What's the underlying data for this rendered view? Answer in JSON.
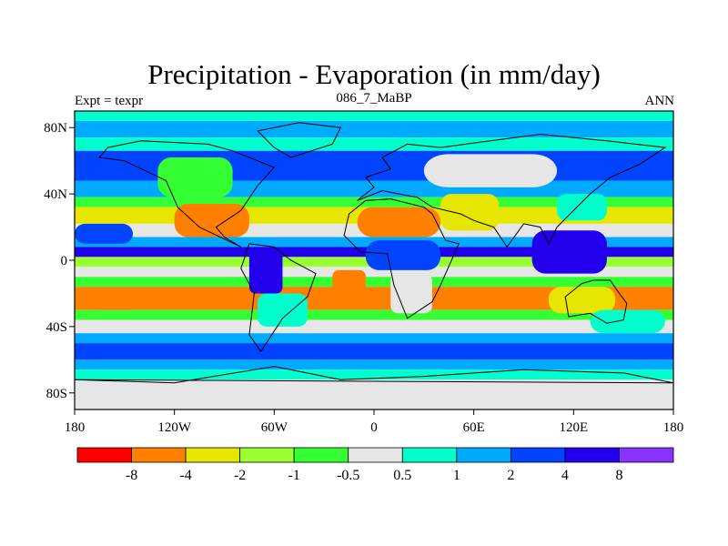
{
  "chart_data": {
    "type": "heatmap",
    "title": "Precipitation - Evaporation (in mm/day)",
    "subtitle_left": "Expt = texpr",
    "subtitle_center": "086_7_MaBP",
    "subtitle_right": "ANN",
    "x_axis": {
      "range": [
        -180,
        180
      ],
      "ticks": [
        -180,
        -120,
        -60,
        0,
        60,
        120,
        180
      ],
      "tick_labels": [
        "180",
        "120W",
        "60W",
        "0",
        "60E",
        "120E",
        "180"
      ]
    },
    "y_axis": {
      "range": [
        -90,
        90
      ],
      "ticks": [
        80,
        40,
        0,
        -40,
        -80
      ],
      "tick_labels": [
        "80N",
        "40N",
        "0",
        "40S",
        "80S"
      ]
    },
    "colorbar": {
      "colors": [
        "#ff0000",
        "#ff8000",
        "#e6e600",
        "#99ff33",
        "#33ff33",
        "#e6e6e6",
        "#00ffcc",
        "#00aaff",
        "#0044ff",
        "#2200ee",
        "#8833ff"
      ],
      "labels": [
        "-8",
        "-4",
        "-2",
        "-1",
        "-0.5",
        "0.5",
        "1",
        "2",
        "4",
        "8"
      ]
    },
    "zonal_bands": [
      {
        "lat_max": 90,
        "lat_min": 84,
        "level": 6
      },
      {
        "lat_max": 84,
        "lat_min": 74,
        "level": 7
      },
      {
        "lat_max": 74,
        "lat_min": 66,
        "level": 6
      },
      {
        "lat_max": 66,
        "lat_min": 48,
        "level": 8
      },
      {
        "lat_max": 48,
        "lat_min": 38,
        "level": 7
      },
      {
        "lat_max": 38,
        "lat_min": 32,
        "level": 4
      },
      {
        "lat_max": 32,
        "lat_min": 22,
        "level": 2
      },
      {
        "lat_max": 22,
        "lat_min": 14,
        "level": 5
      },
      {
        "lat_max": 14,
        "lat_min": 8,
        "level": 7
      },
      {
        "lat_max": 8,
        "lat_min": 2,
        "level": 9
      },
      {
        "lat_max": 2,
        "lat_min": -4,
        "level": 3
      },
      {
        "lat_max": -4,
        "lat_min": -10,
        "level": 5
      },
      {
        "lat_max": -10,
        "lat_min": -16,
        "level": 4
      },
      {
        "lat_max": -16,
        "lat_min": -30,
        "level": 1
      },
      {
        "lat_max": -30,
        "lat_min": -36,
        "level": 4
      },
      {
        "lat_max": -36,
        "lat_min": -44,
        "level": 5
      },
      {
        "lat_max": -44,
        "lat_min": -50,
        "level": 7
      },
      {
        "lat_max": -50,
        "lat_min": -60,
        "level": 8
      },
      {
        "lat_max": -60,
        "lat_min": -66,
        "level": 7
      },
      {
        "lat_max": -66,
        "lat_min": -72,
        "level": 6
      },
      {
        "lat_max": -72,
        "lat_min": -90,
        "level": 5
      }
    ],
    "regions": [
      {
        "lon": [
          -130,
          -85
        ],
        "lat": [
          38,
          62
        ],
        "level": 4
      },
      {
        "lon": [
          -120,
          -75
        ],
        "lat": [
          14,
          34
        ],
        "level": 1
      },
      {
        "lon": [
          -75,
          -55
        ],
        "lat": [
          -20,
          8
        ],
        "level": 9
      },
      {
        "lon": [
          -70,
          -40
        ],
        "lat": [
          -40,
          -20
        ],
        "level": 6
      },
      {
        "lon": [
          -10,
          40
        ],
        "lat": [
          14,
          32
        ],
        "level": 1
      },
      {
        "lon": [
          -5,
          40
        ],
        "lat": [
          -6,
          12
        ],
        "level": 8
      },
      {
        "lon": [
          10,
          35
        ],
        "lat": [
          -32,
          -8
        ],
        "level": 5
      },
      {
        "lon": [
          -25,
          -5
        ],
        "lat": [
          -24,
          -6
        ],
        "level": 1
      },
      {
        "lon": [
          40,
          75
        ],
        "lat": [
          18,
          40
        ],
        "level": 2
      },
      {
        "lon": [
          30,
          110
        ],
        "lat": [
          44,
          64
        ],
        "level": 5
      },
      {
        "lon": [
          110,
          140
        ],
        "lat": [
          24,
          40
        ],
        "level": 6
      },
      {
        "lon": [
          95,
          140
        ],
        "lat": [
          -8,
          18
        ],
        "level": 9
      },
      {
        "lon": [
          105,
          145
        ],
        "lat": [
          -32,
          -16
        ],
        "level": 2
      },
      {
        "lon": [
          130,
          175
        ],
        "lat": [
          -44,
          -30
        ],
        "level": 6
      },
      {
        "lon": [
          -170,
          -140
        ],
        "lat": [
          -30,
          -18
        ],
        "level": 1
      },
      {
        "lon": [
          -180,
          -145
        ],
        "lat": [
          10,
          22
        ],
        "level": 8
      }
    ],
    "land_outlines": [
      [
        [
          -160,
          68
        ],
        [
          -140,
          72
        ],
        [
          -100,
          70
        ],
        [
          -85,
          66
        ],
        [
          -60,
          56
        ],
        [
          -70,
          45
        ],
        [
          -80,
          30
        ],
        [
          -95,
          20
        ],
        [
          -90,
          14
        ],
        [
          -80,
          8
        ],
        [
          -105,
          20
        ],
        [
          -118,
          32
        ],
        [
          -125,
          48
        ],
        [
          -150,
          60
        ],
        [
          -165,
          62
        ]
      ],
      [
        [
          -75,
          10
        ],
        [
          -60,
          8
        ],
        [
          -50,
          0
        ],
        [
          -35,
          -8
        ],
        [
          -40,
          -22
        ],
        [
          -55,
          -35
        ],
        [
          -68,
          -55
        ],
        [
          -75,
          -45
        ],
        [
          -72,
          -20
        ],
        [
          -80,
          -5
        ]
      ],
      [
        [
          -50,
          62
        ],
        [
          -25,
          70
        ],
        [
          -20,
          80
        ],
        [
          -45,
          83
        ],
        [
          -70,
          78
        ],
        [
          -60,
          68
        ]
      ],
      [
        [
          -18,
          15
        ],
        [
          -15,
          28
        ],
        [
          -5,
          36
        ],
        [
          10,
          37
        ],
        [
          30,
          32
        ],
        [
          35,
          28
        ],
        [
          43,
          12
        ],
        [
          51,
          10
        ],
        [
          40,
          -15
        ],
        [
          35,
          -25
        ],
        [
          20,
          -35
        ],
        [
          12,
          -15
        ],
        [
          8,
          4
        ],
        [
          -8,
          5
        ]
      ],
      [
        [
          -10,
          36
        ],
        [
          0,
          44
        ],
        [
          -5,
          50
        ],
        [
          10,
          55
        ],
        [
          5,
          62
        ],
        [
          20,
          70
        ],
        [
          40,
          68
        ],
        [
          70,
          72
        ],
        [
          100,
          76
        ],
        [
          140,
          72
        ],
        [
          175,
          68
        ],
        [
          160,
          58
        ],
        [
          142,
          50
        ],
        [
          130,
          40
        ],
        [
          120,
          30
        ],
        [
          110,
          20
        ],
        [
          105,
          10
        ],
        [
          100,
          20
        ],
        [
          90,
          22
        ],
        [
          80,
          8
        ],
        [
          72,
          20
        ],
        [
          60,
          24
        ],
        [
          52,
          28
        ],
        [
          35,
          32
        ],
        [
          26,
          38
        ],
        [
          15,
          40
        ],
        [
          5,
          42
        ]
      ],
      [
        [
          115,
          -22
        ],
        [
          125,
          -14
        ],
        [
          132,
          -12
        ],
        [
          142,
          -12
        ],
        [
          146,
          -18
        ],
        [
          152,
          -26
        ],
        [
          150,
          -36
        ],
        [
          140,
          -38
        ],
        [
          130,
          -32
        ],
        [
          117,
          -34
        ]
      ],
      [
        [
          -180,
          -72
        ],
        [
          -120,
          -74
        ],
        [
          -60,
          -64
        ],
        [
          -20,
          -72
        ],
        [
          30,
          -70
        ],
        [
          90,
          -66
        ],
        [
          150,
          -68
        ],
        [
          180,
          -74
        ]
      ]
    ]
  }
}
